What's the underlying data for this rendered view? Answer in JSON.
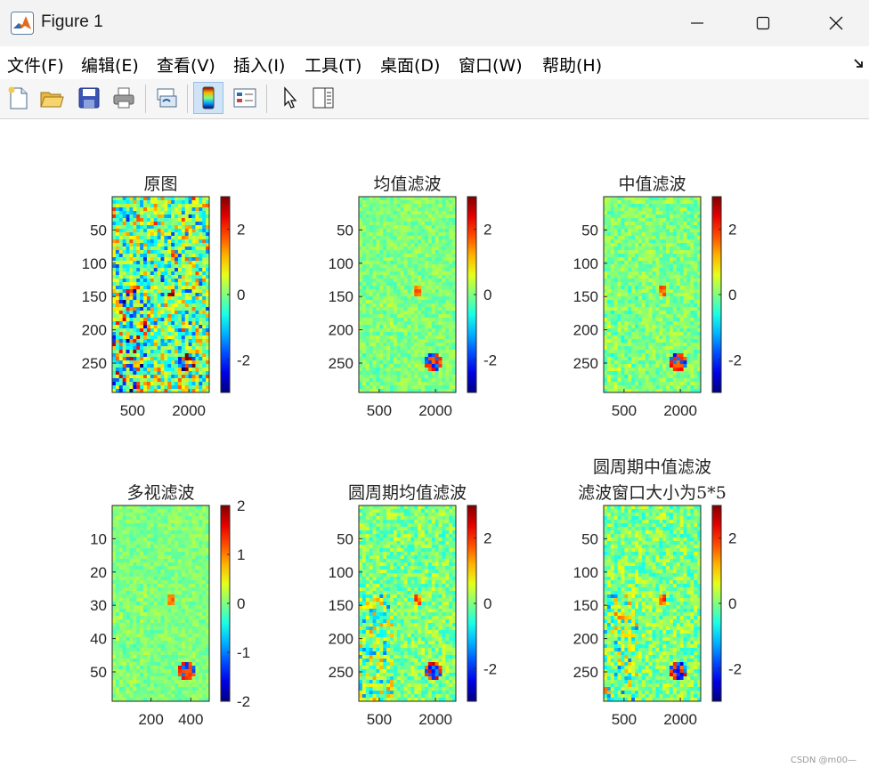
{
  "window": {
    "title": "Figure 1",
    "controls": [
      "minimize",
      "maximize",
      "close"
    ]
  },
  "menu": [
    {
      "label": "文件(F)"
    },
    {
      "label": "编辑(E)"
    },
    {
      "label": "查看(V)"
    },
    {
      "label": "插入(I)"
    },
    {
      "label": "工具(T)"
    },
    {
      "label": "桌面(D)"
    },
    {
      "label": "窗口(W)"
    },
    {
      "label": "帮助(H)"
    }
  ],
  "toolbar": {
    "buttons": [
      {
        "icon": "new-figure-icon"
      },
      {
        "icon": "open-folder-icon"
      },
      {
        "icon": "save-icon"
      },
      {
        "icon": "print-icon"
      },
      {
        "icon": "link-icon"
      },
      {
        "icon": "colorbar-icon",
        "active": true
      },
      {
        "icon": "legend-icon"
      },
      {
        "icon": "pointer-icon"
      },
      {
        "icon": "property-editor-icon"
      }
    ]
  },
  "colormap": "jet",
  "figure": {
    "subplots": [
      {
        "title": [
          "原图"
        ],
        "xticks": [
          "500",
          "2000"
        ],
        "yticks": [
          "50",
          "100",
          "150",
          "200",
          "250"
        ],
        "colorbar_ticks": [
          "2",
          "0",
          "-2"
        ],
        "clim": [
          -3,
          3
        ]
      },
      {
        "title": [
          "均值滤波"
        ],
        "xticks": [
          "500",
          "2000"
        ],
        "yticks": [
          "50",
          "100",
          "150",
          "200",
          "250"
        ],
        "colorbar_ticks": [
          "2",
          "0",
          "-2"
        ],
        "clim": [
          -3,
          3
        ]
      },
      {
        "title": [
          "中值滤波"
        ],
        "xticks": [
          "500",
          "2000"
        ],
        "yticks": [
          "50",
          "100",
          "150",
          "200",
          "250"
        ],
        "colorbar_ticks": [
          "2",
          "0",
          "-2"
        ],
        "clim": [
          -3,
          3
        ]
      },
      {
        "title": [
          "多视滤波"
        ],
        "xticks": [
          "200",
          "400"
        ],
        "yticks": [
          "10",
          "20",
          "30",
          "40",
          "50"
        ],
        "colorbar_ticks": [
          "2",
          "1",
          "0",
          "-1",
          "-2"
        ],
        "clim": [
          -2,
          2
        ]
      },
      {
        "title": [
          "圆周期均值滤波"
        ],
        "xticks": [
          "500",
          "2000"
        ],
        "yticks": [
          "50",
          "100",
          "150",
          "200",
          "250"
        ],
        "colorbar_ticks": [
          "2",
          "0",
          "-2"
        ],
        "clim": [
          -3,
          3
        ]
      },
      {
        "title": [
          "圆周期中值滤波",
          "滤波窗口大小为5*5"
        ],
        "xticks": [
          "500",
          "2000"
        ],
        "yticks": [
          "50",
          "100",
          "150",
          "200",
          "250"
        ],
        "colorbar_ticks": [
          "2",
          "0",
          "-2"
        ],
        "clim": [
          -3,
          3
        ]
      }
    ]
  },
  "watermark": "CSDN @m00—"
}
